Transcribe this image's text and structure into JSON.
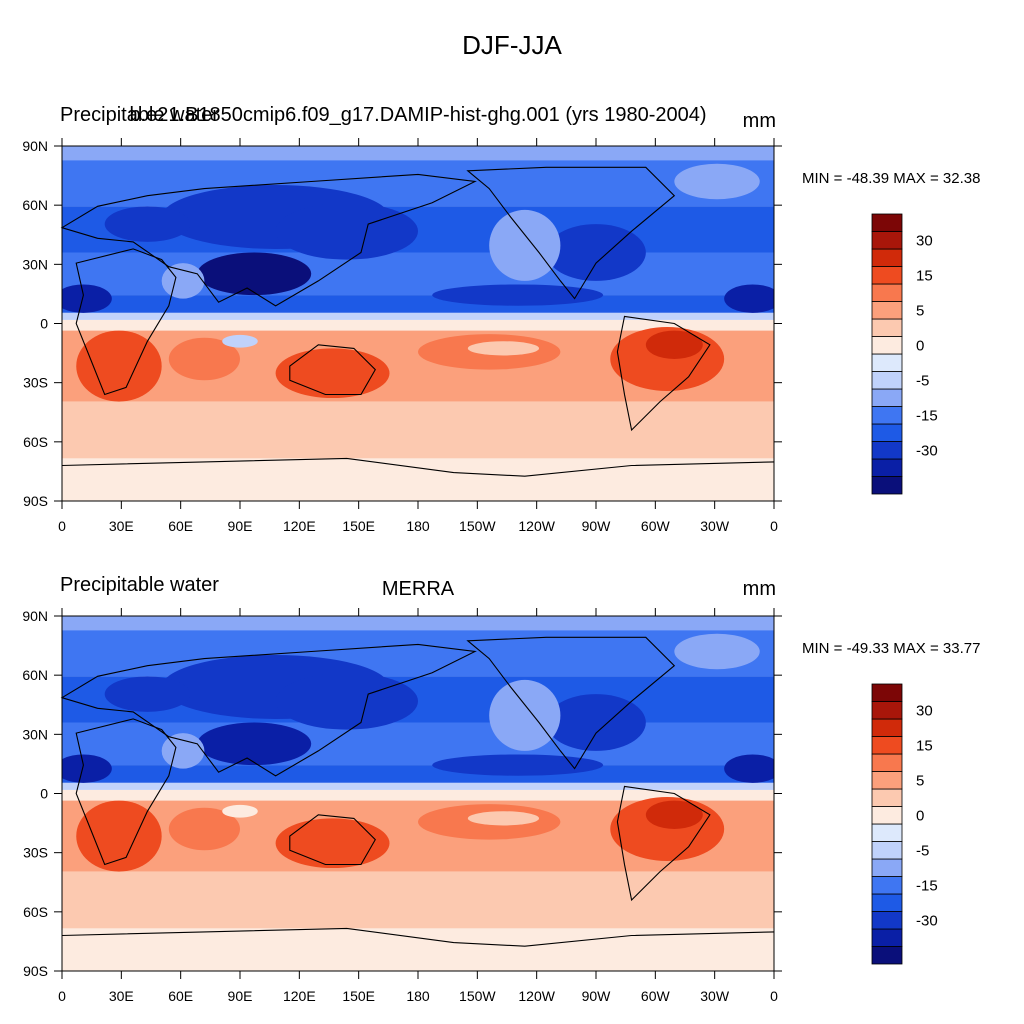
{
  "title": "DJF-JJA",
  "colorbar": {
    "colors": [
      "#0a0f7a",
      "#0a1fa6",
      "#1238c8",
      "#1e5ae6",
      "#3f76f2",
      "#8aa8f6",
      "#c0d2fb",
      "#dde9fc",
      "#fdebe0",
      "#fcc9b0",
      "#fba07c",
      "#f8784e",
      "#ee4b20",
      "#d02a0a",
      "#a8160a",
      "#7c0606"
    ],
    "labels": [
      {
        "text": "-30",
        "index": 2
      },
      {
        "text": "-15",
        "index": 4
      },
      {
        "text": "-5",
        "index": 6
      },
      {
        "text": "0",
        "index": 8
      },
      {
        "text": "5",
        "index": 10
      },
      {
        "text": "15",
        "index": 12
      },
      {
        "text": "30",
        "index": 14
      }
    ]
  },
  "axes": {
    "x_ticks": [
      "0",
      "30E",
      "60E",
      "90E",
      "120E",
      "150E",
      "180",
      "150W",
      "120W",
      "90W",
      "60W",
      "30W",
      "0"
    ],
    "y_ticks": [
      "90N",
      "60N",
      "30N",
      "0",
      "30S",
      "60S",
      "90S"
    ]
  },
  "panels": [
    {
      "left_title": "Precipitable water",
      "center_title": "b.e21.B1850cmip6.f09_g17.DAMIP-hist-ghg.001 (yrs 1980-2004)",
      "right_title": "mm",
      "min_label": "MIN = -48.39",
      "max_label": "MAX =  32.38"
    },
    {
      "left_title": "Precipitable water",
      "center_title": "MERRA",
      "right_title": "mm",
      "min_label": "MIN = -49.33",
      "max_label": "MAX =  33.77"
    }
  ]
}
